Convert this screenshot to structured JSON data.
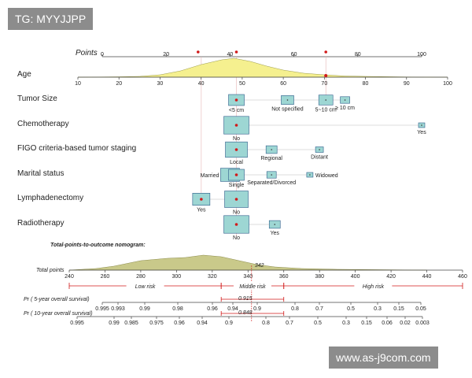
{
  "watermark_top": "TG: MYYJJPP",
  "watermark_bottom": "www.as-j9com.com",
  "colors": {
    "box_fill": "#9dd6d3",
    "box_stroke": "#2e5c8a",
    "dot": "#d11a1a",
    "density_fill": "#f5f08f",
    "risk_red": "#d11a1a",
    "bottom_density": "#c9c98a"
  },
  "chart_data": {
    "type": "nomogram",
    "points_scale": {
      "label": "Points",
      "min": 0,
      "max": 100,
      "ticks": [
        "0",
        "20",
        "40",
        "60",
        "80",
        "100"
      ]
    },
    "variables": [
      {
        "name": "Age",
        "type": "continuous",
        "ticks": [
          "10",
          "20",
          "30",
          "40",
          "50",
          "60",
          "70",
          "80",
          "90",
          "100"
        ],
        "points_per_unit": 1
      },
      {
        "name": "Tumor Size",
        "levels": [
          {
            "label": "<5 cm",
            "points": 42
          },
          {
            "label": "Not specified",
            "points": 58
          },
          {
            "label": "5~10 cm",
            "points": 70
          },
          {
            "label": "≥ 10 cm",
            "points": 76
          }
        ]
      },
      {
        "name": "Chemotherapy",
        "levels": [
          {
            "label": "No",
            "points": 42
          },
          {
            "label": "Yes",
            "points": 100
          }
        ]
      },
      {
        "name": "FIGO criteria-based tumor staging",
        "levels": [
          {
            "label": "Local",
            "points": 42
          },
          {
            "label": "Regional",
            "points": 53
          },
          {
            "label": "Distant",
            "points": 68
          }
        ]
      },
      {
        "name": "Marital status",
        "levels": [
          {
            "label": "Married",
            "points": 40
          },
          {
            "label": "Single",
            "points": 42
          },
          {
            "label": "Separated/Divorced",
            "points": 53
          },
          {
            "label": "Widowed",
            "points": 65
          }
        ]
      },
      {
        "name": "Lymphadenectomy",
        "levels": [
          {
            "label": "Yes",
            "points": 31
          },
          {
            "label": "No",
            "points": 42
          }
        ]
      },
      {
        "name": "Radiotherapy",
        "levels": [
          {
            "label": "No",
            "points": 42
          },
          {
            "label": "Yes",
            "points": 54
          }
        ]
      }
    ],
    "total_points": {
      "title": "Total-points-to-outcome nomogram:",
      "label": "Total points",
      "min": 240,
      "max": 460,
      "ticks": [
        "240",
        "260",
        "280",
        "300",
        "320",
        "340",
        "360",
        "380",
        "400",
        "420",
        "440",
        "460"
      ],
      "observed": "342",
      "risk_groups": [
        {
          "label": "Low risk",
          "from": 240,
          "to": 325
        },
        {
          "label": "Middle risk",
          "from": 325,
          "to": 360
        },
        {
          "label": "High risk",
          "from": 360,
          "to": 460
        }
      ]
    },
    "survival_5yr": {
      "label": "Pr ( 5-year overall survival)",
      "ticks": [
        "0.995",
        "0.993",
        "0.99",
        "0.98",
        "0.96",
        "0.94",
        "0.9",
        "0.8",
        "0.7",
        "0.5",
        "0.3",
        "0.15",
        "0.05"
      ],
      "observed": "0.915"
    },
    "survival_10yr": {
      "label": "Pr ( 10-year overall survival)",
      "ticks": [
        "0.995",
        "0.99",
        "0.985",
        "0.975",
        "0.96",
        "0.94",
        "0.9",
        "0.8",
        "0.7",
        "0.5",
        "0.3",
        "0.15",
        "0.06",
        "0.02",
        "0.003"
      ],
      "observed": "0.848"
    }
  }
}
